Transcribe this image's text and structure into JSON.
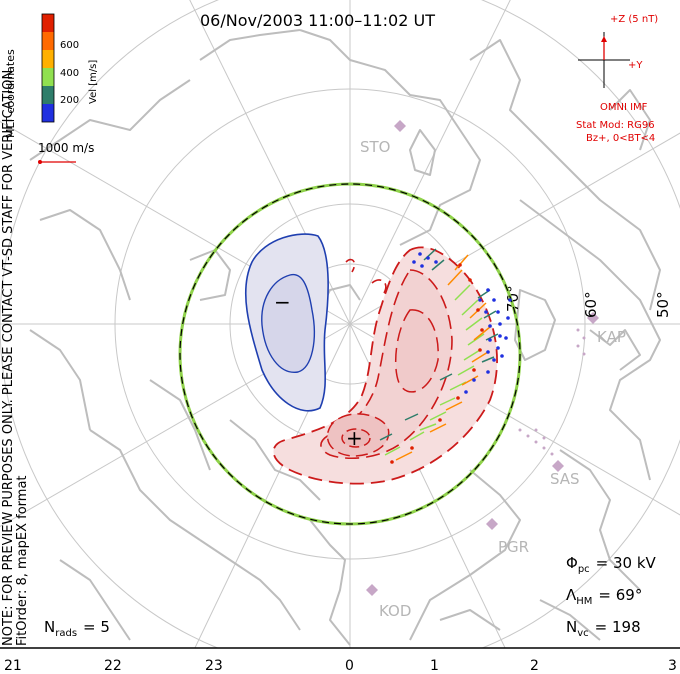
{
  "title": "06/Nov/2003 11:00–11:02 UT",
  "color_bar": {
    "label": "Vel [m/s]",
    "ticks": [
      "200",
      "400",
      "600"
    ],
    "colors": [
      "#2030e0",
      "#2e7d6a",
      "#90e050",
      "#ffb000",
      "#ff6a00",
      "#e02000"
    ]
  },
  "coordinate_label": "MLT coordinates",
  "scale_vector": "1000 m/s",
  "preview_note": "NOTE: FOR PREVIEW PURPOSES ONLY. PLEASE CONTACT VT-SD STAFF FOR VERIFICATION.",
  "fit_order": "FitOrder: 8, mapEX format",
  "imf": {
    "z_label": "+Z (5 nT)",
    "y_label": "+Y",
    "source": "OMNI IMF",
    "stat_mod": "Stat Mod: RG96",
    "condition": "Bz+, 0<BT<4"
  },
  "stations": [
    "STO",
    "KAP",
    "SAS",
    "PGR",
    "KOD"
  ],
  "latitude_labels": [
    "70°",
    "60°",
    "50°"
  ],
  "potential_signs": {
    "minus": "−",
    "plus": "+"
  },
  "stats": {
    "phi_pc_sym": "Φ",
    "phi_pc_sub": "pc",
    "phi_pc": "= 30 kV",
    "lambda_hm_sym": "Λ",
    "lambda_hm_sub": "HM",
    "lambda_hm": "= 69°",
    "n_vc_sym": "N",
    "n_vc_sub": "vc",
    "n_vc": "= 198",
    "n_rads_sym": "N",
    "n_rads_sub": "rads",
    "n_rads": "= 5"
  },
  "mlt_ticks": [
    "21",
    "22",
    "23",
    "0",
    "1",
    "2",
    "3"
  ],
  "colors": {
    "coastline": "#bdbdbd",
    "grid": "#c8c8c8",
    "negative_cell": "#1f3fb0",
    "positive_cell": "#cc1a1a",
    "hmb_outer": "#8fd24a",
    "text_red": "#e00000"
  }
}
